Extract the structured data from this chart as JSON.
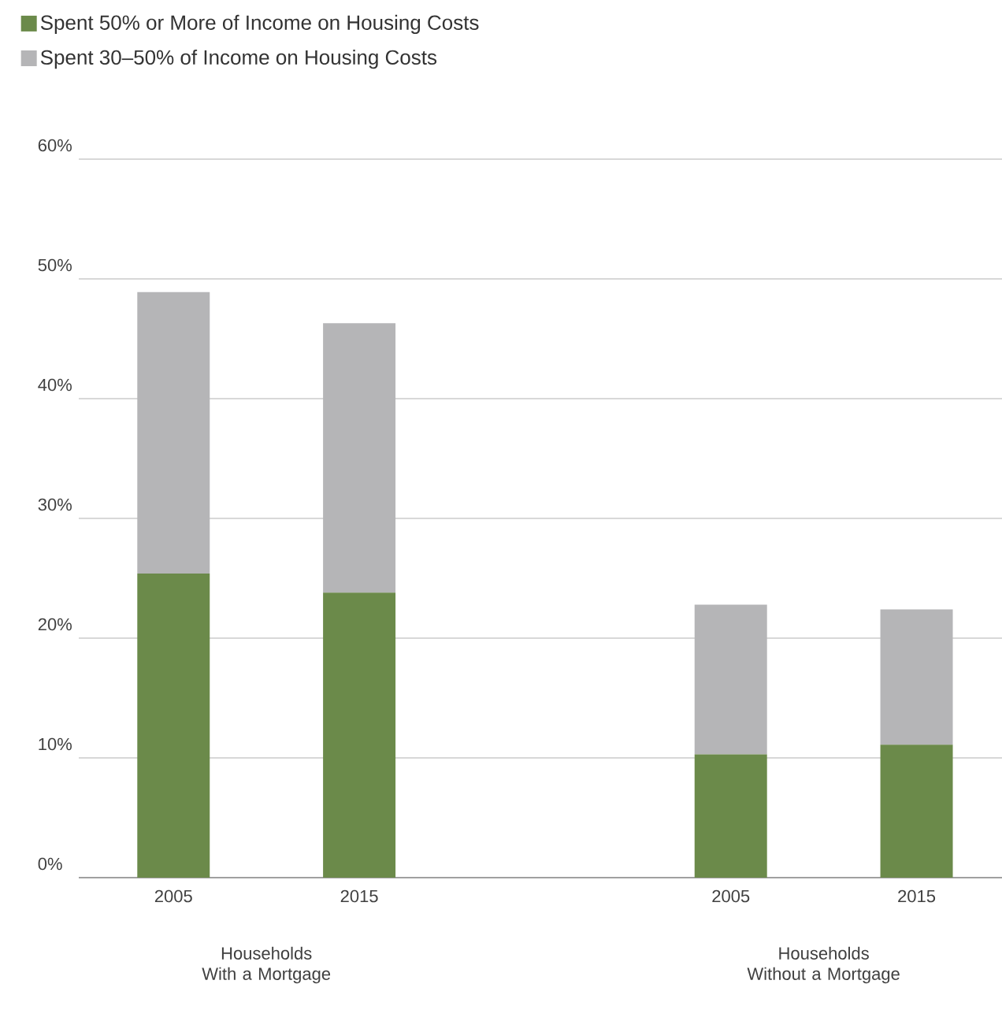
{
  "chart_data": {
    "type": "bar",
    "stacked": true,
    "categories": [
      "2005",
      "2015",
      null,
      "2005",
      "2015"
    ],
    "series": [
      {
        "name": "Spent 50% or More of Income on Housing Costs",
        "color": "#6b8a4a",
        "values": [
          25.4,
          23.8,
          null,
          10.3,
          11.1
        ]
      },
      {
        "name": "Spent 30–50% of Income on Housing Costs",
        "color": "#b5b5b7",
        "values": [
          23.5,
          22.5,
          null,
          12.5,
          11.3
        ]
      }
    ],
    "ylim": [
      0,
      60
    ],
    "yticks": [
      {
        "value": 0,
        "label": "0%"
      },
      {
        "value": 10,
        "label": "10%"
      },
      {
        "value": 20,
        "label": "20%"
      },
      {
        "value": 30,
        "label": "30%"
      },
      {
        "value": 40,
        "label": "40%"
      },
      {
        "value": 50,
        "label": "50%"
      },
      {
        "value": 60,
        "label": "60%"
      }
    ],
    "grid": "y",
    "legend": "top left",
    "annotations": [
      "Households With a Mortgage",
      "Households Without a Mortgage"
    ]
  }
}
